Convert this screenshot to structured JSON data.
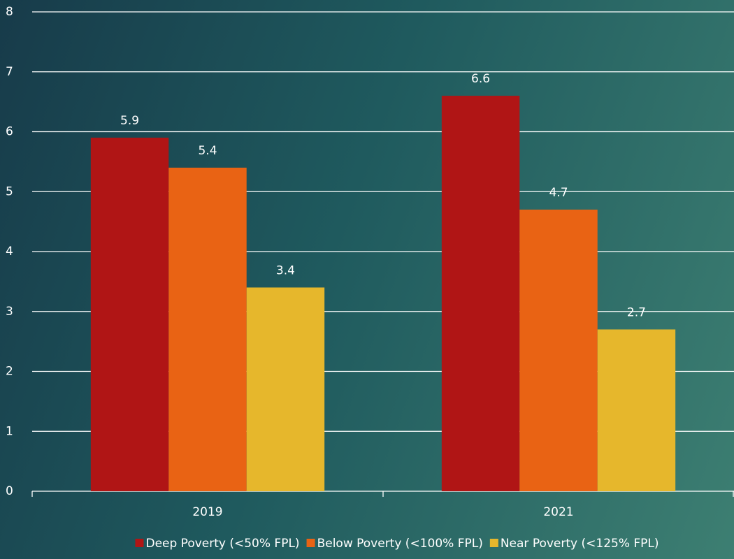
{
  "chart_data": {
    "type": "bar",
    "categories": [
      "2019",
      "2021"
    ],
    "series": [
      {
        "name": "Deep Poverty (<50% FPL)",
        "color": "#b01515",
        "values": [
          5.9,
          6.6
        ]
      },
      {
        "name": "Below Poverty (<100% FPL)",
        "color": "#e96314",
        "values": [
          5.4,
          4.7
        ]
      },
      {
        "name": "Near Poverty (<125% FPL)",
        "color": "#e6b72c",
        "values": [
          3.4,
          2.7
        ]
      }
    ],
    "ylim": [
      0,
      8
    ],
    "yticks": [
      0,
      1,
      2,
      3,
      4,
      5,
      6,
      7,
      8
    ],
    "grid": true,
    "legend": "bottom"
  }
}
